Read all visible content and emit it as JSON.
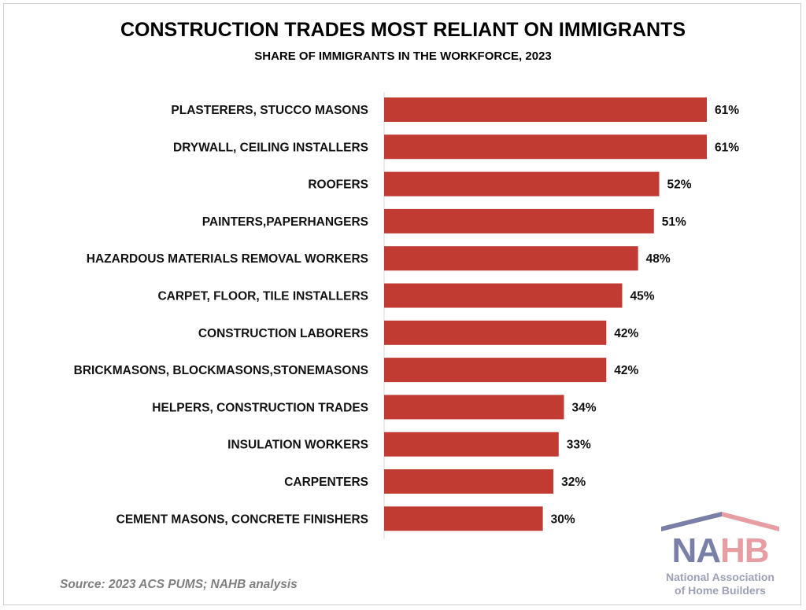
{
  "chart_data": {
    "type": "bar",
    "orientation": "horizontal",
    "title": "CONSTRUCTION TRADES MOST RELIANT ON IMMIGRANTS",
    "subtitle": "SHARE OF IMMIGRANTS IN THE WORKFORCE, 2023",
    "categories": [
      "PLASTERERS, STUCCO MASONS",
      "DRYWALL, CEILING INSTALLERS",
      "ROOFERS",
      "PAINTERS,PAPERHANGERS",
      "HAZARDOUS MATERIALS REMOVAL WORKERS",
      "CARPET, FLOOR, TILE INSTALLERS",
      "CONSTRUCTION LABORERS",
      "BRICKMASONS, BLOCKMASONS,STONEMASONS",
      "HELPERS, CONSTRUCTION TRADES",
      "INSULATION WORKERS",
      "CARPENTERS",
      "CEMENT MASONS, CONCRETE FINISHERS"
    ],
    "values": [
      61,
      61,
      52,
      51,
      48,
      45,
      42,
      42,
      34,
      33,
      32,
      30
    ],
    "labels": [
      "61%",
      "61%",
      "52%",
      "51%",
      "48%",
      "45%",
      "42%",
      "42%",
      "34%",
      "33%",
      "32%",
      "30%"
    ],
    "xlabel": "",
    "ylabel": "",
    "xlim": [
      0,
      61
    ],
    "grid": false,
    "bar_color": "#c23b33"
  },
  "source": "Source: 2023 ACS PUMS; NAHB analysis",
  "logo": {
    "name_part1": "NA",
    "name_part2": "HB",
    "line1": "National Association",
    "line2": "of Home Builders"
  }
}
